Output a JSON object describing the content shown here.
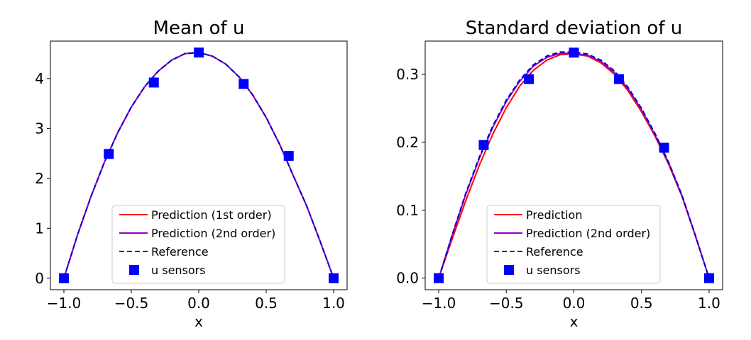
{
  "chart_data": [
    {
      "type": "line",
      "title": "Mean of u",
      "xlabel": "x",
      "ylabel": "",
      "xlim": [
        -1.1,
        1.1
      ],
      "ylim": [
        -0.23,
        4.75
      ],
      "xticks": [
        -1.0,
        -0.5,
        0.0,
        0.5,
        1.0
      ],
      "xtick_labels": [
        "−1.0",
        "−0.5",
        "0.0",
        "0.5",
        "1.0"
      ],
      "yticks": [
        0,
        1,
        2,
        3,
        4
      ],
      "ytick_labels": [
        "0",
        "1",
        "2",
        "3",
        "4"
      ],
      "grid": false,
      "legend_position": "lower-center",
      "x": [
        -1.0,
        -0.9,
        -0.8,
        -0.7,
        -0.6,
        -0.5,
        -0.4,
        -0.3,
        -0.2,
        -0.1,
        0.0,
        0.1,
        0.2,
        0.3,
        0.4,
        0.5,
        0.6,
        0.7,
        0.8,
        0.9,
        1.0
      ],
      "series": [
        {
          "name": "Prediction (1st order)",
          "style": "solid",
          "color": "#ff0000",
          "marker": "none",
          "values": [
            0.0,
            0.86,
            1.63,
            2.32,
            2.92,
            3.43,
            3.84,
            4.15,
            4.37,
            4.5,
            4.52,
            4.45,
            4.29,
            4.03,
            3.67,
            3.22,
            2.68,
            2.06,
            1.45,
            0.74,
            0.0
          ]
        },
        {
          "name": "Prediction (2nd order)",
          "style": "solid",
          "color": "#9900cc",
          "marker": "none",
          "values": [
            0.0,
            0.86,
            1.63,
            2.32,
            2.92,
            3.43,
            3.84,
            4.15,
            4.37,
            4.5,
            4.52,
            4.45,
            4.29,
            4.03,
            3.67,
            3.22,
            2.68,
            2.06,
            1.45,
            0.74,
            0.0
          ]
        },
        {
          "name": "Reference",
          "style": "dashed",
          "color": "#0000cc",
          "marker": "none",
          "values": [
            0.0,
            0.86,
            1.63,
            2.32,
            2.92,
            3.43,
            3.84,
            4.15,
            4.37,
            4.5,
            4.52,
            4.45,
            4.29,
            4.03,
            3.67,
            3.22,
            2.68,
            2.06,
            1.45,
            0.74,
            0.0
          ]
        },
        {
          "name": "u sensors",
          "style": "none",
          "color": "#0000ff",
          "marker": "square",
          "x": [
            -1.0,
            -0.667,
            -0.333,
            0.0,
            0.333,
            0.667,
            1.0
          ],
          "values": [
            0.0,
            2.49,
            3.92,
            4.52,
            3.89,
            2.45,
            0.0
          ]
        }
      ]
    },
    {
      "type": "line",
      "title": "Standard deviation of u",
      "xlabel": "x",
      "ylabel": "",
      "xlim": [
        -1.1,
        1.1
      ],
      "ylim": [
        -0.017,
        0.349
      ],
      "xticks": [
        -1.0,
        -0.5,
        0.0,
        0.5,
        1.0
      ],
      "xtick_labels": [
        "−1.0",
        "−0.5",
        "0.0",
        "0.5",
        "1.0"
      ],
      "yticks": [
        0.0,
        0.1,
        0.2,
        0.3
      ],
      "ytick_labels": [
        "0.0",
        "0.1",
        "0.2",
        "0.3"
      ],
      "grid": false,
      "legend_position": "lower-center",
      "x": [
        -1.0,
        -0.9,
        -0.8,
        -0.7,
        -0.6,
        -0.5,
        -0.4,
        -0.3,
        -0.2,
        -0.1,
        0.0,
        0.1,
        0.2,
        0.3,
        0.4,
        0.5,
        0.6,
        0.7,
        0.8,
        0.9,
        1.0
      ],
      "series": [
        {
          "name": "Prediction",
          "style": "solid",
          "color": "#ff0000",
          "marker": "none",
          "values": [
            0.0,
            0.058,
            0.114,
            0.166,
            0.212,
            0.251,
            0.283,
            0.306,
            0.321,
            0.329,
            0.33,
            0.327,
            0.317,
            0.3,
            0.276,
            0.245,
            0.209,
            0.168,
            0.12,
            0.061,
            0.0
          ]
        },
        {
          "name": "Prediction (2nd order)",
          "style": "solid",
          "color": "#9900cc",
          "marker": "none",
          "values": [
            0.0,
            0.063,
            0.123,
            0.176,
            0.222,
            0.26,
            0.29,
            0.312,
            0.325,
            0.331,
            0.331,
            0.328,
            0.319,
            0.303,
            0.279,
            0.248,
            0.211,
            0.17,
            0.121,
            0.062,
            0.0
          ]
        },
        {
          "name": "Reference",
          "style": "dashed",
          "color": "#0000cc",
          "marker": "none",
          "values": [
            0.0,
            0.064,
            0.125,
            0.178,
            0.224,
            0.262,
            0.292,
            0.314,
            0.327,
            0.333,
            0.333,
            0.33,
            0.321,
            0.305,
            0.281,
            0.25,
            0.213,
            0.171,
            0.122,
            0.062,
            0.0
          ]
        },
        {
          "name": "u sensors",
          "style": "none",
          "color": "#0000ff",
          "marker": "square",
          "x": [
            -1.0,
            -0.667,
            -0.333,
            0.0,
            0.333,
            0.667,
            1.0
          ],
          "values": [
            0.0,
            0.196,
            0.293,
            0.332,
            0.293,
            0.192,
            0.0
          ]
        }
      ]
    }
  ]
}
